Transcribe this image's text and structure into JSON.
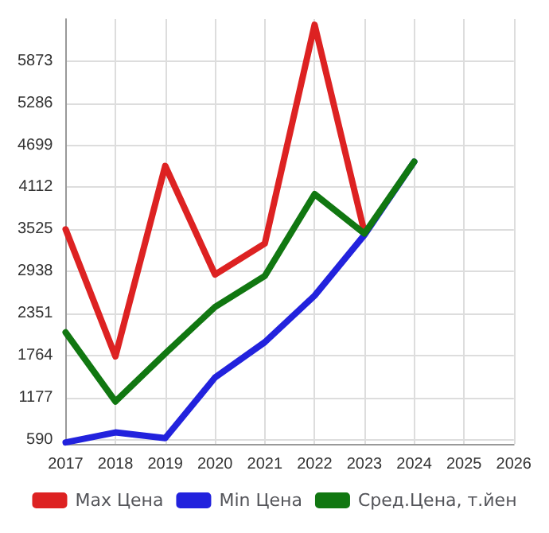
{
  "chart_data": {
    "type": "line",
    "x": [
      2017,
      2018,
      2019,
      2020,
      2021,
      2022,
      2023,
      2024
    ],
    "series": [
      {
        "name": "Max Цена",
        "color": "#dd2222",
        "values": [
          3525,
          1752,
          4411,
          2895,
          3328,
          6381,
          3486,
          null
        ]
      },
      {
        "name": "Min Цена",
        "color": "#2222dd",
        "values": [
          550,
          690,
          610,
          1457,
          1950,
          2600,
          3446,
          4470
        ]
      },
      {
        "name": "Сред.Цена, т.йен",
        "color": "#117711",
        "values": [
          2087,
          1122,
          1792,
          2442,
          2875,
          4017,
          3466,
          4470
        ]
      }
    ],
    "xlim": [
      2017,
      2026
    ],
    "xticks": [
      2017,
      2018,
      2019,
      2020,
      2021,
      2022,
      2023,
      2024,
      2025,
      2026
    ],
    "ylim": [
      530,
      6460
    ],
    "yticks": [
      590,
      1177,
      1764,
      2351,
      2938,
      3525,
      4112,
      4699,
      5286,
      5873
    ],
    "grid": true,
    "legend": "bottom",
    "marker": "none",
    "line_style": "solid"
  }
}
